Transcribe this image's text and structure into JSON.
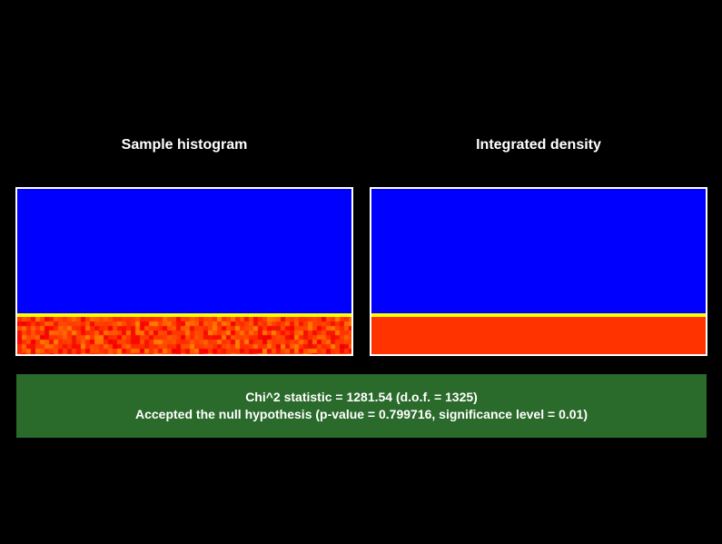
{
  "panels": {
    "left": {
      "title": "Sample histogram"
    },
    "right": {
      "title": "Integrated density"
    }
  },
  "colors": {
    "background": "#000000",
    "top_region": "#0000ff",
    "separator": "#ffff00",
    "bottom_region": "#ff3300",
    "result_box": "#2a6a2a",
    "border": "#ffffff"
  },
  "result": {
    "line1": "Chi^2 statistic = 1281.54 (d.o.f. = 1325)",
    "line2": "Accepted the null hypothesis (p-value = 0.799716, significance level = 0.01)"
  }
}
